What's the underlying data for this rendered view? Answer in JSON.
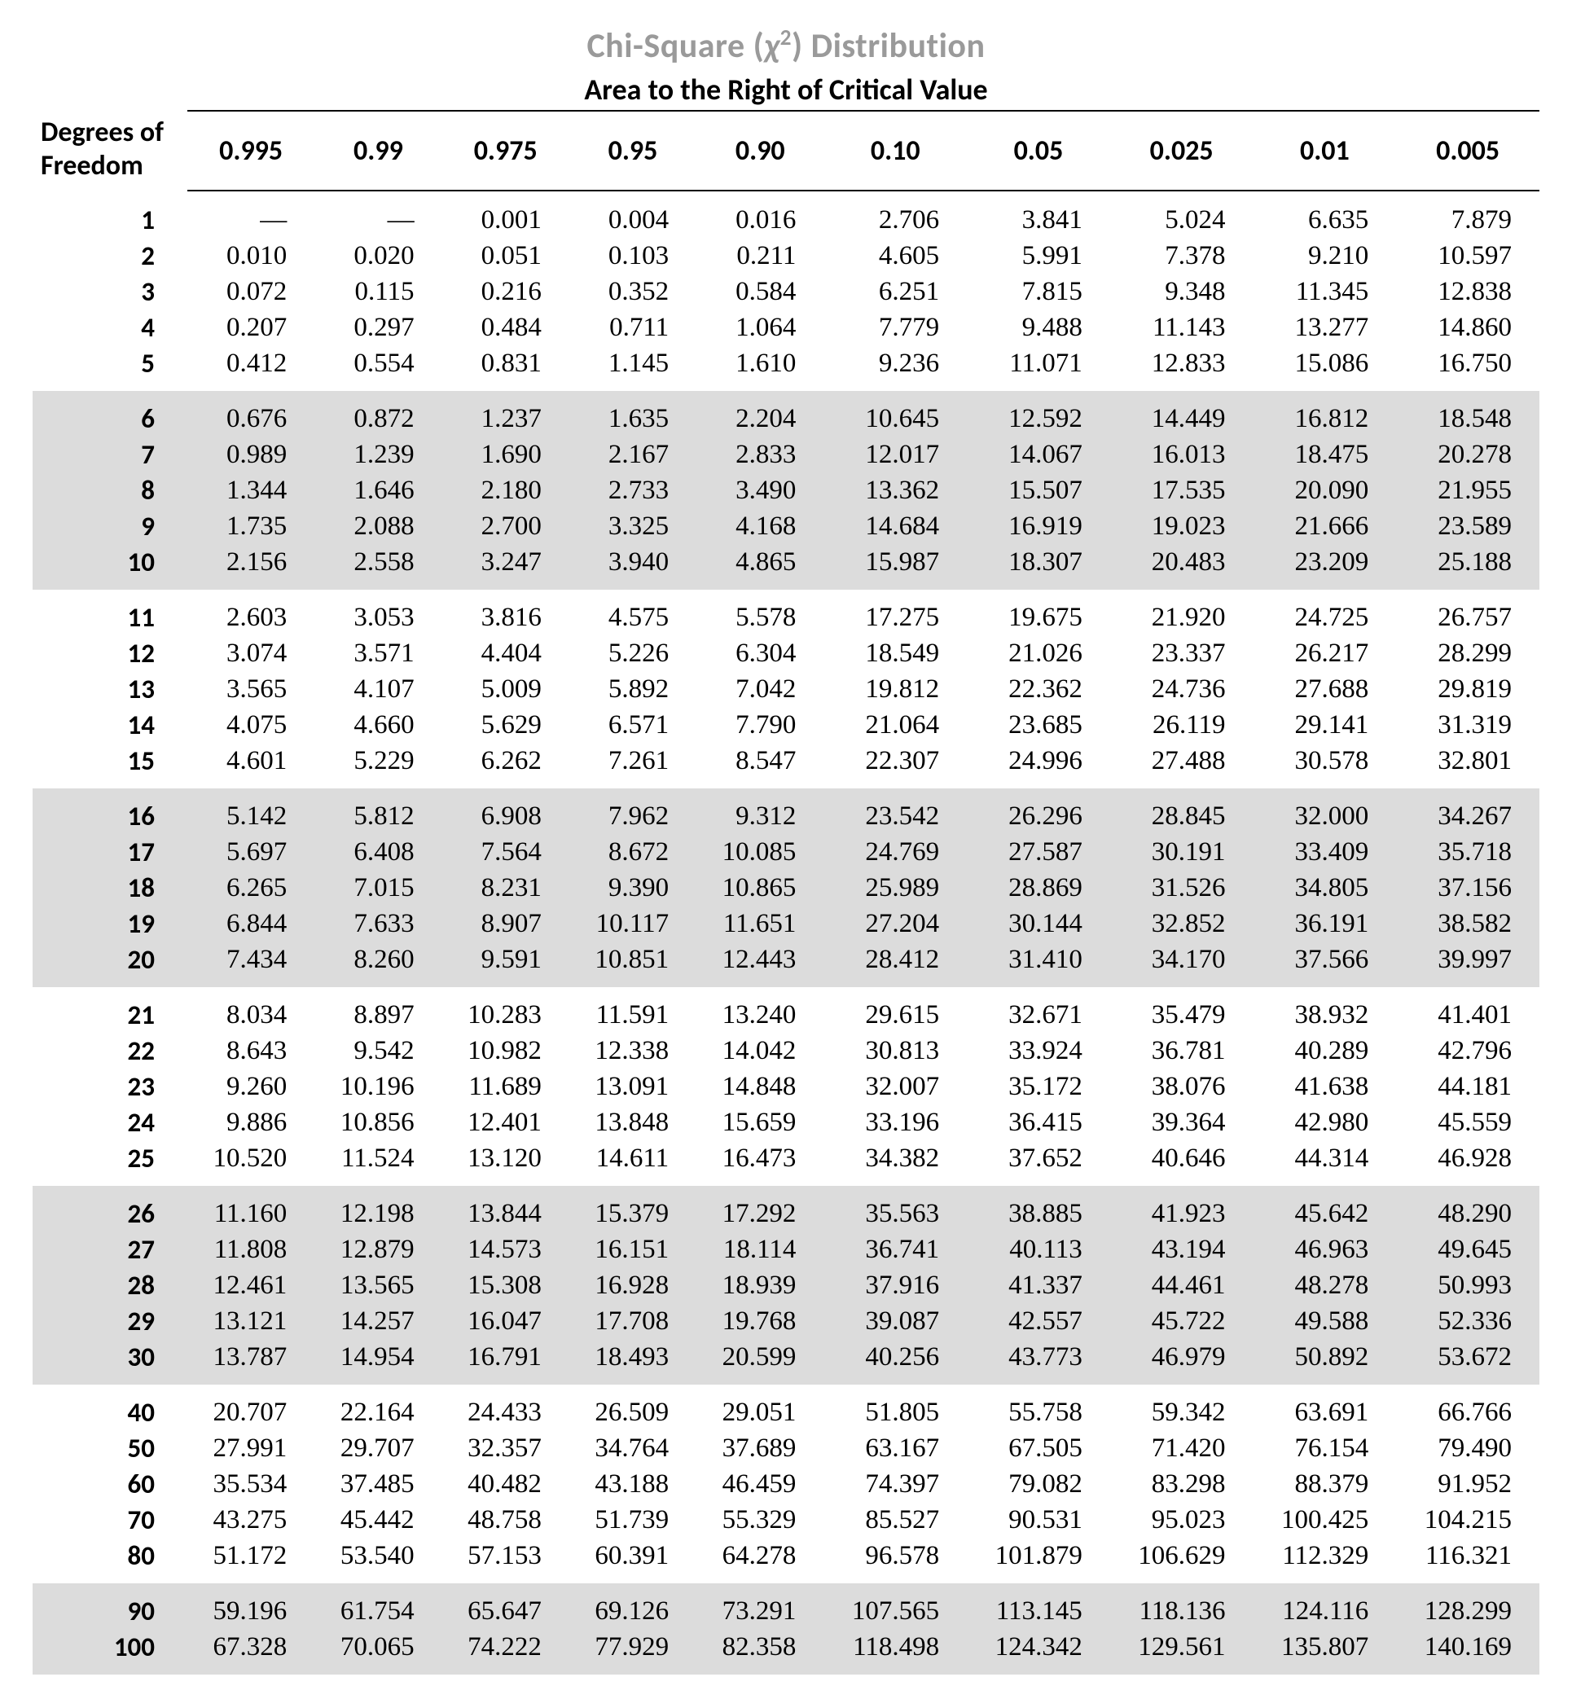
{
  "title_parts": {
    "pre": "Chi-Square (",
    "chi": "χ",
    "sup": "2",
    "post": ") Distribution"
  },
  "subtitle": "Area to the Right of Critical Value",
  "rowhead_1": "Degrees of",
  "rowhead_2": "Freedom",
  "columns": [
    "0.995",
    "0.99",
    "0.975",
    "0.95",
    "0.90",
    "0.10",
    "0.05",
    "0.025",
    "0.01",
    "0.005"
  ],
  "group_size": 5,
  "rows": [
    {
      "df": "1",
      "v": [
        "—",
        "—",
        "0.001",
        "0.004",
        "0.016",
        "2.706",
        "3.841",
        "5.024",
        "6.635",
        "7.879"
      ]
    },
    {
      "df": "2",
      "v": [
        "0.010",
        "0.020",
        "0.051",
        "0.103",
        "0.211",
        "4.605",
        "5.991",
        "7.378",
        "9.210",
        "10.597"
      ]
    },
    {
      "df": "3",
      "v": [
        "0.072",
        "0.115",
        "0.216",
        "0.352",
        "0.584",
        "6.251",
        "7.815",
        "9.348",
        "11.345",
        "12.838"
      ]
    },
    {
      "df": "4",
      "v": [
        "0.207",
        "0.297",
        "0.484",
        "0.711",
        "1.064",
        "7.779",
        "9.488",
        "11.143",
        "13.277",
        "14.860"
      ]
    },
    {
      "df": "5",
      "v": [
        "0.412",
        "0.554",
        "0.831",
        "1.145",
        "1.610",
        "9.236",
        "11.071",
        "12.833",
        "15.086",
        "16.750"
      ]
    },
    {
      "df": "6",
      "v": [
        "0.676",
        "0.872",
        "1.237",
        "1.635",
        "2.204",
        "10.645",
        "12.592",
        "14.449",
        "16.812",
        "18.548"
      ]
    },
    {
      "df": "7",
      "v": [
        "0.989",
        "1.239",
        "1.690",
        "2.167",
        "2.833",
        "12.017",
        "14.067",
        "16.013",
        "18.475",
        "20.278"
      ]
    },
    {
      "df": "8",
      "v": [
        "1.344",
        "1.646",
        "2.180",
        "2.733",
        "3.490",
        "13.362",
        "15.507",
        "17.535",
        "20.090",
        "21.955"
      ]
    },
    {
      "df": "9",
      "v": [
        "1.735",
        "2.088",
        "2.700",
        "3.325",
        "4.168",
        "14.684",
        "16.919",
        "19.023",
        "21.666",
        "23.589"
      ]
    },
    {
      "df": "10",
      "v": [
        "2.156",
        "2.558",
        "3.247",
        "3.940",
        "4.865",
        "15.987",
        "18.307",
        "20.483",
        "23.209",
        "25.188"
      ]
    },
    {
      "df": "11",
      "v": [
        "2.603",
        "3.053",
        "3.816",
        "4.575",
        "5.578",
        "17.275",
        "19.675",
        "21.920",
        "24.725",
        "26.757"
      ]
    },
    {
      "df": "12",
      "v": [
        "3.074",
        "3.571",
        "4.404",
        "5.226",
        "6.304",
        "18.549",
        "21.026",
        "23.337",
        "26.217",
        "28.299"
      ]
    },
    {
      "df": "13",
      "v": [
        "3.565",
        "4.107",
        "5.009",
        "5.892",
        "7.042",
        "19.812",
        "22.362",
        "24.736",
        "27.688",
        "29.819"
      ]
    },
    {
      "df": "14",
      "v": [
        "4.075",
        "4.660",
        "5.629",
        "6.571",
        "7.790",
        "21.064",
        "23.685",
        "26.119",
        "29.141",
        "31.319"
      ]
    },
    {
      "df": "15",
      "v": [
        "4.601",
        "5.229",
        "6.262",
        "7.261",
        "8.547",
        "22.307",
        "24.996",
        "27.488",
        "30.578",
        "32.801"
      ]
    },
    {
      "df": "16",
      "v": [
        "5.142",
        "5.812",
        "6.908",
        "7.962",
        "9.312",
        "23.542",
        "26.296",
        "28.845",
        "32.000",
        "34.267"
      ]
    },
    {
      "df": "17",
      "v": [
        "5.697",
        "6.408",
        "7.564",
        "8.672",
        "10.085",
        "24.769",
        "27.587",
        "30.191",
        "33.409",
        "35.718"
      ]
    },
    {
      "df": "18",
      "v": [
        "6.265",
        "7.015",
        "8.231",
        "9.390",
        "10.865",
        "25.989",
        "28.869",
        "31.526",
        "34.805",
        "37.156"
      ]
    },
    {
      "df": "19",
      "v": [
        "6.844",
        "7.633",
        "8.907",
        "10.117",
        "11.651",
        "27.204",
        "30.144",
        "32.852",
        "36.191",
        "38.582"
      ]
    },
    {
      "df": "20",
      "v": [
        "7.434",
        "8.260",
        "9.591",
        "10.851",
        "12.443",
        "28.412",
        "31.410",
        "34.170",
        "37.566",
        "39.997"
      ]
    },
    {
      "df": "21",
      "v": [
        "8.034",
        "8.897",
        "10.283",
        "11.591",
        "13.240",
        "29.615",
        "32.671",
        "35.479",
        "38.932",
        "41.401"
      ]
    },
    {
      "df": "22",
      "v": [
        "8.643",
        "9.542",
        "10.982",
        "12.338",
        "14.042",
        "30.813",
        "33.924",
        "36.781",
        "40.289",
        "42.796"
      ]
    },
    {
      "df": "23",
      "v": [
        "9.260",
        "10.196",
        "11.689",
        "13.091",
        "14.848",
        "32.007",
        "35.172",
        "38.076",
        "41.638",
        "44.181"
      ]
    },
    {
      "df": "24",
      "v": [
        "9.886",
        "10.856",
        "12.401",
        "13.848",
        "15.659",
        "33.196",
        "36.415",
        "39.364",
        "42.980",
        "45.559"
      ]
    },
    {
      "df": "25",
      "v": [
        "10.520",
        "11.524",
        "13.120",
        "14.611",
        "16.473",
        "34.382",
        "37.652",
        "40.646",
        "44.314",
        "46.928"
      ]
    },
    {
      "df": "26",
      "v": [
        "11.160",
        "12.198",
        "13.844",
        "15.379",
        "17.292",
        "35.563",
        "38.885",
        "41.923",
        "45.642",
        "48.290"
      ]
    },
    {
      "df": "27",
      "v": [
        "11.808",
        "12.879",
        "14.573",
        "16.151",
        "18.114",
        "36.741",
        "40.113",
        "43.194",
        "46.963",
        "49.645"
      ]
    },
    {
      "df": "28",
      "v": [
        "12.461",
        "13.565",
        "15.308",
        "16.928",
        "18.939",
        "37.916",
        "41.337",
        "44.461",
        "48.278",
        "50.993"
      ]
    },
    {
      "df": "29",
      "v": [
        "13.121",
        "14.257",
        "16.047",
        "17.708",
        "19.768",
        "39.087",
        "42.557",
        "45.722",
        "49.588",
        "52.336"
      ]
    },
    {
      "df": "30",
      "v": [
        "13.787",
        "14.954",
        "16.791",
        "18.493",
        "20.599",
        "40.256",
        "43.773",
        "46.979",
        "50.892",
        "53.672"
      ]
    },
    {
      "df": "40",
      "v": [
        "20.707",
        "22.164",
        "24.433",
        "26.509",
        "29.051",
        "51.805",
        "55.758",
        "59.342",
        "63.691",
        "66.766"
      ]
    },
    {
      "df": "50",
      "v": [
        "27.991",
        "29.707",
        "32.357",
        "34.764",
        "37.689",
        "63.167",
        "67.505",
        "71.420",
        "76.154",
        "79.490"
      ]
    },
    {
      "df": "60",
      "v": [
        "35.534",
        "37.485",
        "40.482",
        "43.188",
        "46.459",
        "74.397",
        "79.082",
        "83.298",
        "88.379",
        "91.952"
      ]
    },
    {
      "df": "70",
      "v": [
        "43.275",
        "45.442",
        "48.758",
        "51.739",
        "55.329",
        "85.527",
        "90.531",
        "95.023",
        "100.425",
        "104.215"
      ]
    },
    {
      "df": "80",
      "v": [
        "51.172",
        "53.540",
        "57.153",
        "60.391",
        "64.278",
        "96.578",
        "101.879",
        "106.629",
        "112.329",
        "116.321"
      ]
    },
    {
      "df": "90",
      "v": [
        "59.196",
        "61.754",
        "65.647",
        "69.126",
        "73.291",
        "107.565",
        "113.145",
        "118.136",
        "124.116",
        "128.299"
      ]
    },
    {
      "df": "100",
      "v": [
        "67.328",
        "70.065",
        "74.222",
        "77.929",
        "82.358",
        "118.498",
        "124.342",
        "129.561",
        "135.807",
        "140.169"
      ]
    }
  ],
  "styling": {
    "title_color": "#9a9a9a",
    "band_bg": "#dcdcdc",
    "rule_color": "#000000",
    "font_body_pt": 33,
    "font_title_pt": 42,
    "font_subtitle_pt": 36,
    "page_bg": "#ffffff"
  }
}
